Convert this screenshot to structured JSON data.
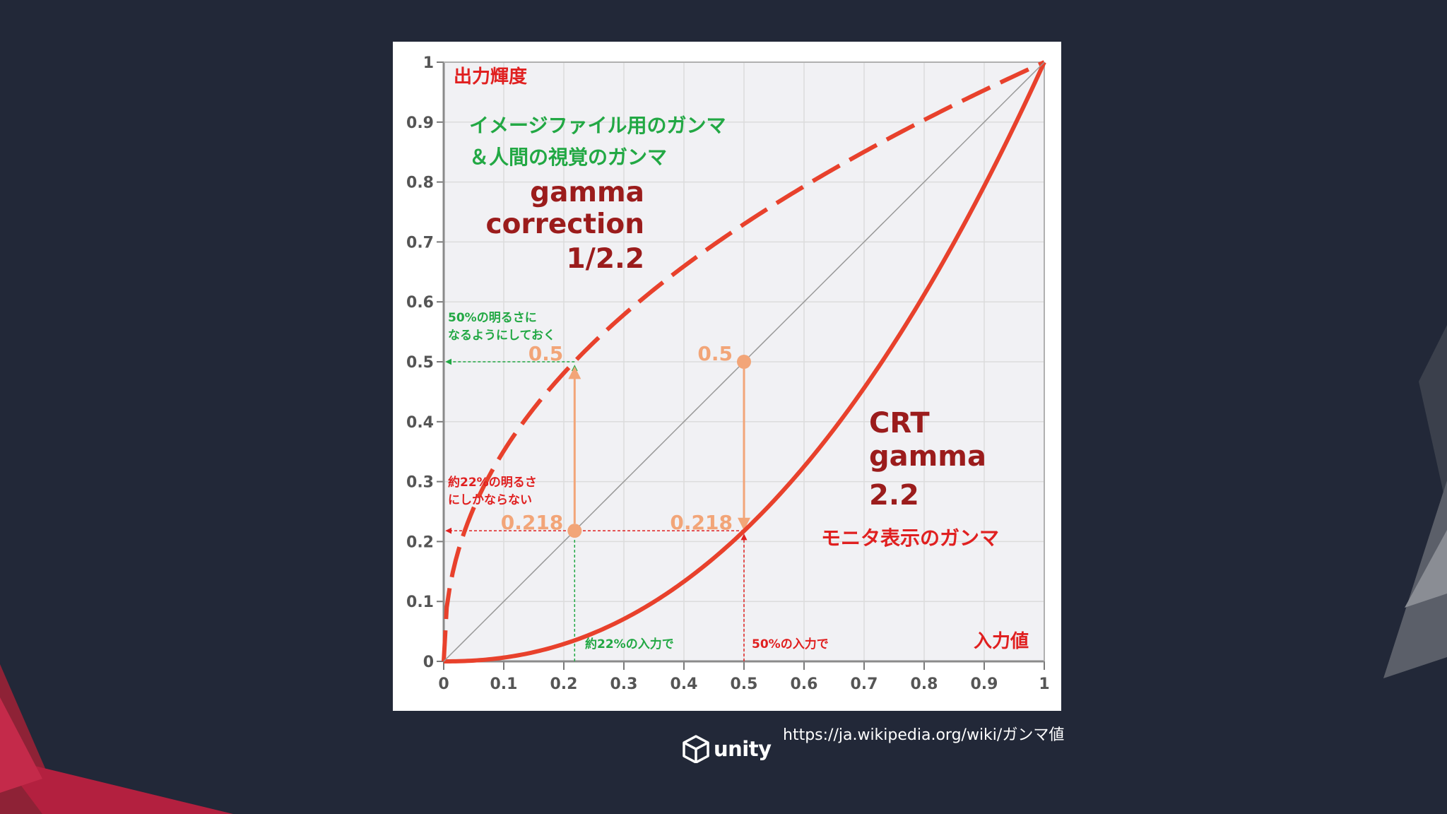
{
  "slide": {
    "background": "#222838",
    "source_url": "https://ja.wikipedia.org/wiki/ガンマ値",
    "logo_text": "unity"
  },
  "chart_data": {
    "type": "line",
    "title": "",
    "ylabel": "出力輝度",
    "xlabel": "入力値",
    "xlim": [
      0,
      1
    ],
    "ylim": [
      0,
      1
    ],
    "grid": true,
    "x_ticks": [
      "0",
      "0.1",
      "0.2",
      "0.3",
      "0.4",
      "0.5",
      "0.6",
      "0.7",
      "0.8",
      "0.9",
      "1"
    ],
    "y_ticks": [
      "0",
      "0.1",
      "0.2",
      "0.3",
      "0.4",
      "0.5",
      "0.6",
      "0.7",
      "0.8",
      "0.9",
      "1"
    ],
    "series": [
      {
        "name": "gamma correction 1/2.2",
        "exponent": 0.4545,
        "style": "dashed",
        "color": "#e8412c"
      },
      {
        "name": "CRT gamma 2.2",
        "exponent": 2.2,
        "style": "solid",
        "color": "#e8412c"
      },
      {
        "name": "linear",
        "exponent": 1,
        "style": "thin",
        "color": "#999999"
      }
    ],
    "points": [
      {
        "x": 0.218,
        "y": 0.5,
        "label": "0.5"
      },
      {
        "x": 0.5,
        "y": 0.5,
        "label": "0.5"
      },
      {
        "x": 0.218,
        "y": 0.218,
        "label": "0.218"
      },
      {
        "x": 0.5,
        "y": 0.218,
        "label": "0.218"
      }
    ],
    "colors": {
      "curve": "#e8412c",
      "dark_red": "#9b1c1c",
      "green": "#22a844",
      "orange": "#f2a578",
      "red_arrow": "#e02020",
      "grid": "#dcdcdc",
      "plot_bg": "#f1f1f4"
    },
    "annotations": {
      "green_title_line1": "イメージファイル用のガンマ",
      "green_title_line2": "＆人間の視覚のガンマ",
      "correction_line1": "gamma",
      "correction_line2": "correction",
      "correction_line3": "1/2.2",
      "crt_line1": "CRT",
      "crt_line2": "gamma",
      "crt_line3": "2.2",
      "monitor_gamma": "モニタ表示のガンマ",
      "green_note_line1": "50%の明るさに",
      "green_note_line2": "なるようにしておく",
      "red_note_line1": "約22%の明るさ",
      "red_note_line2": "にしかならない",
      "input_22": "約22%の入力で",
      "input_50": "50%の入力で"
    }
  }
}
